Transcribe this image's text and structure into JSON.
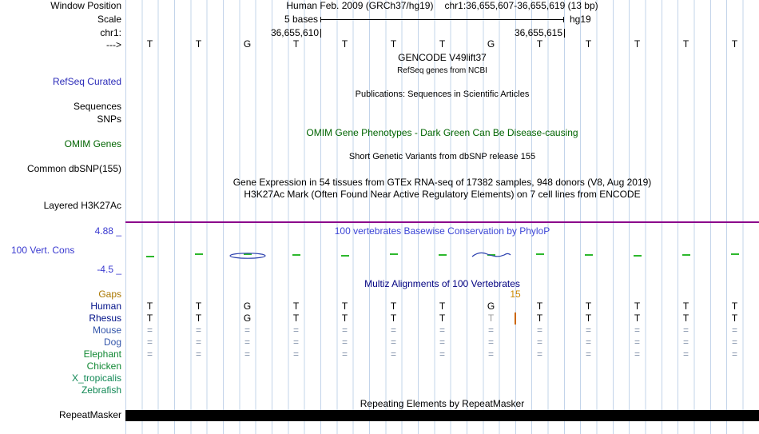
{
  "header": {
    "assembly": "Human Feb. 2009 (GRCh37/hg19)",
    "position": "chr1:36,655,607-36,655,619 (13 bp)",
    "scale_label": "5 bases",
    "genome": "hg19",
    "ruler": {
      "left_coord": "36,655,610",
      "right_coord": "36,655,615"
    }
  },
  "left_labels": {
    "window_position": "Window Position",
    "scale": "Scale",
    "chromosome": "chr1:",
    "strand_arrow": "--->",
    "refseq": "RefSeq Curated",
    "sequences": "Sequences",
    "snps": "SNPs",
    "omim": "OMIM Genes",
    "dbsnp": "Common dbSNP(155)",
    "h3k27ac": "Layered H3K27Ac",
    "cons_max": "4.88 _",
    "cons_name": "100 Vert. Cons",
    "cons_min": "-4.5 _",
    "gaps": "Gaps",
    "repeatmasker": "RepeatMasker"
  },
  "track_titles": {
    "gencode": "GENCODE V49lift37",
    "refseq_sub": "RefSeq genes from NCBI",
    "publications": "Publications: Sequences in Scientific Articles",
    "omim": "OMIM Gene Phenotypes - Dark Green Can Be Disease-causing",
    "dbsnp": "Short Genetic Variants from dbSNP release 155",
    "gtex": "Gene Expression in 54 tissues from GTEx RNA-seq of 17382 samples, 948 donors (V8, Aug 2019)",
    "h3k27ac": "H3K27Ac Mark (Often Found Near Active Regulatory Elements) on 7 cell lines from ENCODE",
    "phylop": "100 vertebrates Basewise Conservation by PhyloP",
    "multiz": "Multiz Alignments of 100 Vertebrates",
    "repeatmasker": "Repeating Elements by RepeatMasker"
  },
  "sequence": {
    "bases": [
      "T",
      "T",
      "G",
      "T",
      "T",
      "T",
      "T",
      "G",
      "T",
      "T",
      "T",
      "T",
      "T"
    ]
  },
  "conservation": {
    "marks": [
      3,
      0,
      0,
      1,
      2,
      0,
      1,
      1,
      0,
      1,
      2,
      1,
      0
    ],
    "dips": [
      {
        "index": 2,
        "kind": "ellipse"
      },
      {
        "index": 7,
        "kind": "wave"
      }
    ]
  },
  "alignment": {
    "gap_count": "15",
    "rows": [
      {
        "name": "Human",
        "color": "#001188",
        "cells": [
          "T",
          "T",
          "G",
          "T",
          "T",
          "T",
          "T",
          "G",
          "T",
          "T",
          "T",
          "T",
          "T"
        ]
      },
      {
        "name": "Rhesus",
        "color": "#001188",
        "muted": 7,
        "cells": [
          "T",
          "T",
          "G",
          "T",
          "T",
          "T",
          "T",
          "T",
          "T",
          "T",
          "T",
          "T",
          "T"
        ]
      },
      {
        "name": "Mouse",
        "color": "#3355aa",
        "cells": [
          "=",
          "=",
          "=",
          "=",
          "=",
          "=",
          "=",
          "=",
          "=",
          "=",
          "=",
          "=",
          "="
        ]
      },
      {
        "name": "Dog",
        "color": "#3355aa",
        "cells": [
          "=",
          "=",
          "=",
          "=",
          "=",
          "=",
          "=",
          "=",
          "=",
          "=",
          "=",
          "=",
          "="
        ]
      },
      {
        "name": "Elephant",
        "color": "#118833",
        "cells": [
          "=",
          "=",
          "=",
          "=",
          "=",
          "=",
          "=",
          "=",
          "=",
          "=",
          "=",
          "=",
          "="
        ]
      },
      {
        "name": "Chicken",
        "color": "#118833",
        "cells": []
      },
      {
        "name": "X_tropicalis",
        "color": "#118855",
        "cells": []
      },
      {
        "name": "Zebrafish",
        "color": "#118855",
        "cells": []
      }
    ]
  },
  "colors": {
    "gridline": "#c3d4ea",
    "separator_purple": "#8b008b",
    "dash_green": "#2db82d",
    "dip_blue": "#2a3fae",
    "gap_orange": "#cc8800",
    "insertion_bar": "#cc6600",
    "repeat_bar": "#000000"
  }
}
